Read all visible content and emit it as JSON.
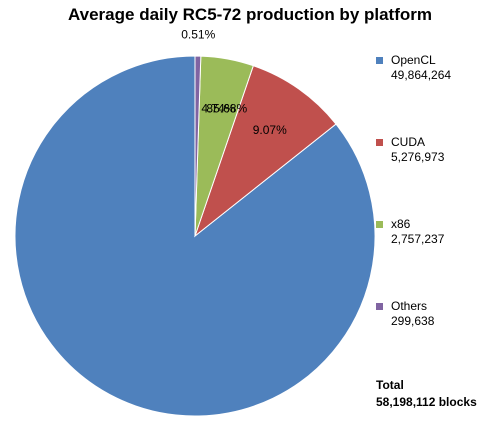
{
  "chart_data": {
    "type": "pie",
    "title": "Average daily RC5-72 production by platform",
    "start_angle": "top",
    "direction": "counterclockwise",
    "slices": [
      {
        "name": "OpenCL",
        "value": 49864264,
        "label": "85.68%",
        "display_value": "49,864,264",
        "color": "#4f81bd"
      },
      {
        "name": "CUDA",
        "value": 5276973,
        "label": "9.07%",
        "display_value": "5,276,973",
        "color": "#c0504d"
      },
      {
        "name": "x86",
        "value": 2757237,
        "label": "4.74%",
        "display_value": "2,757,237",
        "color": "#9bbb59"
      },
      {
        "name": "Others",
        "value": 299638,
        "label": "0.51%",
        "display_value": "299,638",
        "color": "#8064a2"
      }
    ],
    "legend_position": "right",
    "total_label": "Total",
    "total_value": "58,198,112 blocks"
  }
}
